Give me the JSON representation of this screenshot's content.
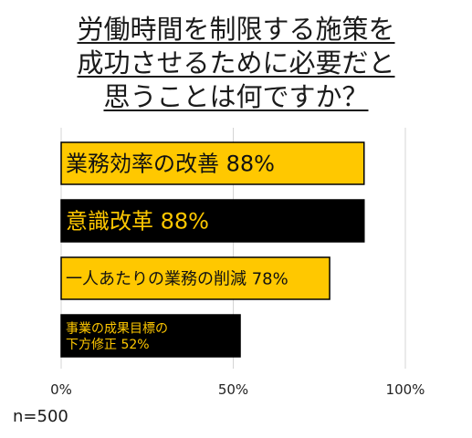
{
  "chart_data": {
    "type": "bar",
    "orientation": "horizontal",
    "title_lines": [
      "労働時間を制限する施策を",
      "成功させるために必要だと",
      "思うことは何ですか？"
    ],
    "categories": [
      [
        "業務効率の改善 88%"
      ],
      [
        "意識改革 88%"
      ],
      [
        "一人あたりの業務の削減 78%"
      ],
      [
        "事業の成果目標の",
        "下方修正 52%"
      ]
    ],
    "values": [
      88,
      88,
      78,
      52
    ],
    "unit": "%",
    "xlim": [
      0,
      100
    ],
    "x_ticks": [
      "0%",
      "50%",
      "100%"
    ],
    "x_tick_values": [
      0,
      50,
      100
    ],
    "grid": "vertical",
    "bar_colors": [
      "#ffc800",
      "#000000",
      "#ffc800",
      "#000000"
    ],
    "label_colors": [
      "#111111",
      "#ffc800",
      "#111111",
      "#ffc800"
    ],
    "label_sizes": [
      "large",
      "large",
      "medium",
      "small"
    ],
    "note": "n=500"
  }
}
